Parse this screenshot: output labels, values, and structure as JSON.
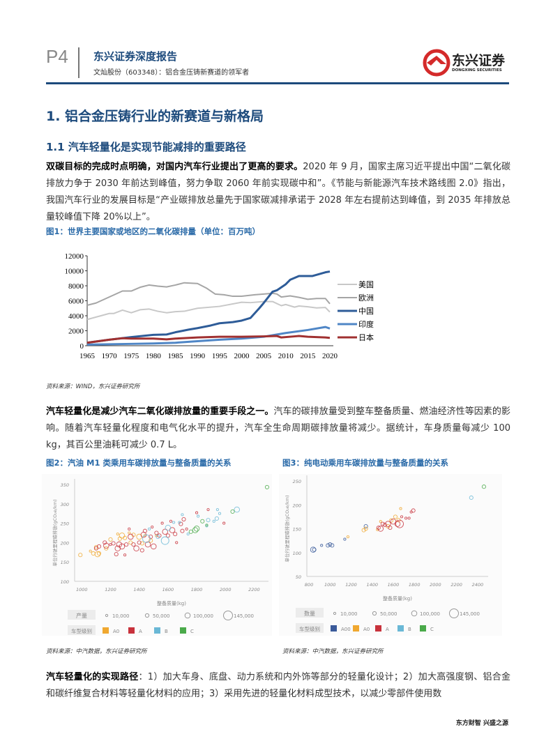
{
  "header": {
    "page": "P4",
    "report_title": "东兴证券深度报告",
    "subtitle": "文灿股份（603348）：铝合金压铸新赛道的领军者",
    "logo_text": "东兴证券",
    "logo_en": "DONGXING SECURITIES",
    "brand_color": "#1c4a7c",
    "logo_color": "#d42a2a"
  },
  "section": {
    "h1": "1. 铝合金压铸行业的新赛道与新格局",
    "h2": "1.1 汽车轻量化是实现节能减排的重要路径"
  },
  "p1": {
    "lead": "双碳目标的完成时点明确，对国内汽车行业提出了更高的要求。",
    "body": "2020 年 9 月，国家主席习近平提出中国“二氧化碳排放力争于 2030 年前达到峰值，努力争取 2060 年前实现碳中和”。《节能与新能源汽车技术路线图 2.0》指出，我国汽车行业的发展目标是“产业碳排放总量先于国家碳减排承诺于 2028 年左右提前达到峰值，到 2035 年排放总量较峰值下降 20%以上”。"
  },
  "fig1": {
    "title": "图1：世界主要国家或地区的二氧化碳排量（单位：百万吨）",
    "source": "资料来源：WIND，东兴证券研究所"
  },
  "p2": {
    "lead": "汽车轻量化是减少汽车二氧化碳排放量的重要手段之一。",
    "body": "汽车的碳排放量受到整车整备质量、燃油经济性等因素的影响。随着汽车轻量化程度和电气化水平的提升，汽车全生命周期碳排放量将减少。据统计，车身质量每减少 100 kg，其百公里油耗可减少 0.7 L。"
  },
  "fig2": {
    "title": "图2：汽油 M1 类乘用车碳排放量与整备质量的关系",
    "source": "资料来源：中汽数据，东兴证券研究所"
  },
  "fig3": {
    "title": "图3：纯电动乘用车碳排放量与整备质量的关系",
    "source": "资料来源：中汽数据，东兴证券研究所"
  },
  "p3": {
    "lead": "汽车轻量化的实现路径",
    "body": "：1）加大车身、底盘、动力系统和内外饰等部分的轻量化设计；2）加大高强度钢、铝合金和碳纤维复合材料等轻量化材料的应用；3）采用先进的轻量化材料成型技术，以减少零部件使用数"
  },
  "footer": "东方财智 兴盛之源",
  "chart_data": [
    {
      "type": "line",
      "xlim": [
        1965,
        2020
      ],
      "ylim": [
        0,
        12000
      ],
      "xticks": [
        "1965",
        "1970",
        "1975",
        "1980",
        "1985",
        "1990",
        "1995",
        "2000",
        "2005",
        "2010",
        "2015",
        "2020"
      ],
      "yticks": [
        "0",
        "2000",
        "4000",
        "6000",
        "8000",
        "10000",
        "12000"
      ],
      "legend": "right",
      "grid": false,
      "series": [
        {
          "name": "美国",
          "color": "#c8c8c8",
          "x": [
            1965,
            1970,
            1971,
            1973,
            1975,
            1977,
            1979,
            1981,
            1983,
            1985,
            1987,
            1990,
            1995,
            2000,
            2002,
            2005,
            2007,
            2009,
            2010,
            2012,
            2013,
            2015,
            2017,
            2019,
            2020
          ],
          "y": [
            3500,
            4300,
            4300,
            4750,
            4400,
            4800,
            4900,
            4600,
            4400,
            4550,
            4600,
            5000,
            5250,
            5800,
            5750,
            5900,
            5900,
            5350,
            5500,
            5150,
            5300,
            5200,
            5050,
            5100,
            4500
          ]
        },
        {
          "name": "欧洲",
          "color": "#a5a5a5",
          "x": [
            1965,
            1967,
            1970,
            1973,
            1975,
            1977,
            1979,
            1981,
            1983,
            1985,
            1987,
            1990,
            1992,
            1994,
            1996,
            1998,
            2000,
            2003,
            2005,
            2007,
            2008,
            2009,
            2011,
            2013,
            2015,
            2017,
            2019,
            2020
          ],
          "y": [
            5400,
            5700,
            6500,
            7300,
            7300,
            7800,
            8100,
            7950,
            7850,
            8100,
            8400,
            8300,
            7700,
            6900,
            6800,
            6600,
            6600,
            6800,
            6900,
            7000,
            6900,
            6500,
            6650,
            6450,
            6200,
            6300,
            6300,
            5600
          ]
        },
        {
          "name": "中国",
          "color": "#2e5c98",
          "x": [
            1965,
            1970,
            1975,
            1980,
            1983,
            1985,
            1988,
            1990,
            1993,
            1995,
            1998,
            2000,
            2002,
            2004,
            2005,
            2007,
            2008,
            2010,
            2011,
            2013,
            2016,
            2019,
            2020
          ],
          "y": [
            400,
            800,
            1150,
            1450,
            1500,
            1800,
            2150,
            2350,
            2700,
            3000,
            3150,
            3350,
            3700,
            5000,
            5700,
            7200,
            7400,
            8200,
            8800,
            9300,
            9300,
            9800,
            9900
          ]
        },
        {
          "name": "印度",
          "color": "#4f86c6",
          "x": [
            1965,
            1975,
            1980,
            1985,
            1990,
            1995,
            2000,
            2005,
            2010,
            2015,
            2019,
            2020
          ],
          "y": [
            150,
            250,
            300,
            400,
            600,
            800,
            950,
            1200,
            1700,
            2100,
            2500,
            2300
          ]
        },
        {
          "name": "日本",
          "color": "#a03030",
          "x": [
            1965,
            1970,
            1973,
            1975,
            1980,
            1983,
            1985,
            1990,
            1995,
            2000,
            2005,
            2008,
            2009,
            2012,
            2013,
            2015,
            2019,
            2020
          ],
          "y": [
            400,
            800,
            1000,
            950,
            950,
            850,
            950,
            1100,
            1200,
            1200,
            1250,
            1300,
            1100,
            1250,
            1300,
            1200,
            1100,
            1050
          ]
        }
      ]
    },
    {
      "type": "scatter",
      "xlabel": "整备质量(kg)",
      "ylabel": "单位行驶里程碳排放(gCO₂e/km)",
      "xlim": [
        950,
        2300
      ],
      "ylim": [
        100,
        350
      ],
      "xticks": [
        "1000",
        "1200",
        "1400",
        "1600",
        "1800",
        "2000",
        "2200"
      ],
      "yticks": [
        "100",
        "150",
        "200",
        "250",
        "300",
        "350"
      ],
      "size_legend_label": "产量",
      "sizes": [
        "10,000",
        "50,000",
        "100,000",
        "145,000"
      ],
      "class_legend_label": "车型级别",
      "classes": [
        {
          "name": "A0",
          "color": "#f0a830"
        },
        {
          "name": "A",
          "color": "#c8323c"
        },
        {
          "name": "B",
          "color": "#6ab8d6"
        },
        {
          "name": "C",
          "color": "#4aaa4a"
        }
      ],
      "points": {
        "A0": [
          [
            990,
            168,
            2
          ],
          [
            1060,
            178,
            1
          ],
          [
            1080,
            172,
            2
          ],
          [
            1100,
            188,
            2
          ],
          [
            1110,
            170,
            3
          ],
          [
            1120,
            172,
            2
          ],
          [
            1170,
            185,
            2
          ],
          [
            1200,
            208,
            2
          ],
          [
            1250,
            222,
            1
          ],
          [
            1265,
            210,
            2
          ],
          [
            1280,
            218,
            3
          ],
          [
            1300,
            212,
            2
          ],
          [
            1330,
            225,
            1
          ],
          [
            1340,
            200,
            2
          ],
          [
            1360,
            220,
            2
          ],
          [
            1400,
            215,
            3
          ],
          [
            1420,
            198,
            2
          ],
          [
            1440,
            218,
            1
          ],
          [
            1480,
            205,
            2
          ],
          [
            1520,
            218,
            1
          ]
        ],
        "A": [
          [
            1100,
            185,
            2
          ],
          [
            1120,
            190,
            2
          ],
          [
            1160,
            200,
            2
          ],
          [
            1170,
            192,
            3
          ],
          [
            1200,
            195,
            1
          ],
          [
            1220,
            198,
            2
          ],
          [
            1240,
            170,
            2
          ],
          [
            1250,
            185,
            3
          ],
          [
            1260,
            195,
            3
          ],
          [
            1280,
            190,
            3
          ],
          [
            1300,
            168,
            1
          ],
          [
            1310,
            195,
            2
          ],
          [
            1330,
            235,
            1
          ],
          [
            1340,
            215,
            3
          ],
          [
            1360,
            195,
            2
          ],
          [
            1380,
            185,
            3
          ],
          [
            1400,
            200,
            2
          ],
          [
            1420,
            180,
            2
          ],
          [
            1430,
            220,
            3
          ],
          [
            1440,
            230,
            2
          ],
          [
            1460,
            195,
            3
          ],
          [
            1480,
            215,
            2
          ],
          [
            1490,
            240,
            1
          ],
          [
            1500,
            190,
            3
          ],
          [
            1520,
            225,
            2
          ],
          [
            1540,
            218,
            2
          ],
          [
            1560,
            250,
            1
          ],
          [
            1580,
            228,
            3
          ],
          [
            1600,
            218,
            2
          ],
          [
            1620,
            255,
            1
          ],
          [
            1630,
            232,
            3
          ],
          [
            1650,
            222,
            2
          ],
          [
            1660,
            200,
            1
          ],
          [
            1690,
            248,
            2
          ],
          [
            1710,
            260,
            2
          ],
          [
            1730,
            235,
            1
          ],
          [
            1800,
            277,
            1
          ],
          [
            1880,
            285,
            1
          ],
          [
            1990,
            250,
            1
          ],
          [
            1700,
            230,
            2
          ]
        ],
        "B": [
          [
            1450,
            210,
            4
          ],
          [
            1530,
            215,
            2
          ],
          [
            1580,
            205,
            4
          ],
          [
            1600,
            238,
            3
          ],
          [
            1640,
            252,
            1
          ],
          [
            1680,
            252,
            1
          ],
          [
            1700,
            272,
            1
          ],
          [
            1740,
            222,
            1
          ],
          [
            1810,
            268,
            1
          ],
          [
            1870,
            243,
            1
          ],
          [
            1880,
            258,
            2
          ],
          [
            1920,
            255,
            1
          ],
          [
            1940,
            262,
            2
          ],
          [
            1945,
            285,
            1
          ],
          [
            1960,
            275,
            1
          ],
          [
            2080,
            285,
            3
          ],
          [
            1470,
            235,
            1
          ]
        ],
        "C": [
          [
            1760,
            228,
            2
          ],
          [
            1790,
            232,
            3
          ],
          [
            1800,
            236,
            3
          ],
          [
            1840,
            255,
            2
          ],
          [
            1870,
            245,
            1
          ],
          [
            2050,
            280,
            2
          ],
          [
            2290,
            343,
            2
          ]
        ]
      }
    },
    {
      "type": "scatter",
      "xlabel": "整备质量(kg)",
      "ylabel": "单位行驶里程碳排放(gCO₂e/km)",
      "xlim": [
        780,
        2500
      ],
      "ylim": [
        50,
        250
      ],
      "xticks": [
        "800",
        "1000",
        "1200",
        "1400",
        "1600",
        "1800",
        "2000",
        "2200",
        "2400"
      ],
      "yticks": [
        "50",
        "100",
        "150",
        "200",
        "250"
      ],
      "size_legend_label": "数量",
      "sizes": [
        "10,000",
        "50,000",
        "100,000",
        "145,000"
      ],
      "class_legend_label": "车型级别",
      "classes": [
        {
          "name": "A00",
          "color": "#3a5a9a"
        },
        {
          "name": "A0",
          "color": "#f0a830"
        },
        {
          "name": "A",
          "color": "#c8323c"
        },
        {
          "name": "B",
          "color": "#6ab8d6"
        },
        {
          "name": "C",
          "color": "#4aaa4a"
        }
      ],
      "points": {
        "A00": [
          [
            840,
            106,
            3
          ],
          [
            850,
            106,
            2
          ],
          [
            920,
            115,
            1
          ],
          [
            980,
            115,
            2
          ],
          [
            1000,
            117,
            2
          ],
          [
            1020,
            115,
            2
          ],
          [
            1140,
            128,
            1
          ],
          [
            1340,
            155,
            2
          ]
        ],
        "A0": [
          [
            1170,
            133,
            1
          ],
          [
            1320,
            147,
            2
          ],
          [
            1340,
            150,
            2
          ],
          [
            1450,
            148,
            1
          ],
          [
            1480,
            165,
            1
          ],
          [
            1550,
            155,
            2
          ],
          [
            1580,
            167,
            2
          ],
          [
            1620,
            175,
            2
          ],
          [
            1670,
            192,
            1
          ],
          [
            1650,
            168,
            2
          ]
        ],
        "A": [
          [
            1460,
            152,
            2
          ],
          [
            1480,
            150,
            3
          ],
          [
            1500,
            160,
            2
          ],
          [
            1520,
            158,
            2
          ],
          [
            1550,
            160,
            3
          ],
          [
            1570,
            152,
            2
          ],
          [
            1600,
            165,
            3
          ],
          [
            1640,
            160,
            3
          ],
          [
            1660,
            160,
            4
          ],
          [
            1680,
            175,
            1
          ],
          [
            1720,
            172,
            1
          ],
          [
            1750,
            172,
            1
          ],
          [
            1770,
            185,
            1
          ],
          [
            1790,
            188,
            2
          ]
        ],
        "B": [
          [
            2340,
            215,
            2
          ]
        ],
        "C": [
          [
            2460,
            238,
            2
          ]
        ]
      }
    }
  ]
}
